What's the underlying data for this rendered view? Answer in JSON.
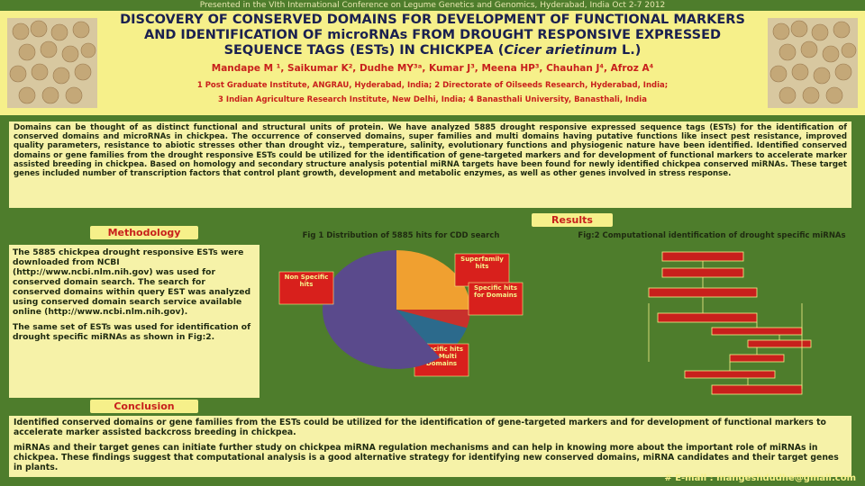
{
  "banner": "Presented in the VIth International Conference on Legume Genetics and Genomics, Hyderabad, India Oct 2-7 2012",
  "header": {
    "title": "DISCOVERY OF CONSERVED DOMAINS FOR DEVELOPMENT OF FUNCTIONAL MARKERS AND IDENTIFICATION OF microRNAs FROM DROUGHT RESPONSIVE EXPRESSED SEQUENCE TAGS (ESTs) IN CHICKPEA (",
    "title_species": "Cicer arietinum",
    "title_end": " L.)",
    "authors": "Mandape M ¹, Saikumar K², Dudhe MY³ᵃ, Kumar J³, Meena HP³, Chauhan J⁴, Afroz A⁴",
    "affiliations_1": "1 Post Graduate Institute, ANGRAU, Hyderabad, India; 2 Directorate of Oilseeds Research, Hyderabad, India;",
    "affiliations_2": "3 Indian Agriculture Research Institute, New Delhi, India; 4 Banasthali University, Banasthali, India"
  },
  "abstract": "Domains can be thought of as distinct functional and structural units of protein. We have analyzed 5885 drought responsive expressed sequence tags (ESTs) for the identification of conserved domains and microRNAs in chickpea. The occurrence of conserved domains, super families and multi domains having putative functions like insect pest resistance, improved quality parameters, resistance to abiotic stresses other than drought viz., temperature, salinity, evolutionary functions and physiogenic nature have been identified. Identified conserved domains or gene families from the drought responsive ESTs could be utilized for the identification of gene-targeted markers and for development of functional markers to accelerate marker assisted breeding in chickpea. Based on homology and secondary structure analysis potential miRNA targets have been found for newly identified chickpea conserved miRNAs. These target genes included number of transcription factors that control plant growth, development and metabolic enzymes, as well as other genes involved in stress response.",
  "methodology": {
    "heading": "Methodology",
    "para_1": "The 5885 chickpea drought responsive ESTs were downloaded from NCBI (http://www.ncbi.nlm.nih.gov) was used for conserved domain search. The search for conserved domains within query EST was analyzed using conserved domain search service available online (http://www.ncbi.nlm.nih.gov).",
    "para_2": "The same set of ESTs was used for identification of drought specific miRNAs as shown in Fig:2."
  },
  "results": {
    "heading": "Results",
    "fig1": {
      "title": "Fig 1 Distribution of 5885 hits for CDD search",
      "slices": [
        {
          "label": "Superfamily hits",
          "value": 25,
          "color": "#f0a030"
        },
        {
          "label": "Specific hits for Domains",
          "value": 5,
          "color": "#c8302c"
        },
        {
          "label": "Specific hits for Multi Domains",
          "value": 10,
          "color": "#2c6a8c"
        },
        {
          "label": "Non Specific hits",
          "value": 60,
          "color": "#5a4a8c"
        }
      ]
    },
    "fig2": {
      "title": "Fig:2 Computational identification of drought specific miRNAs"
    }
  },
  "conclusion": {
    "heading": "Conclusion",
    "para_1": "Identified conserved domains or gene families from the ESTs could be utilized for the identification of gene-targeted markers and for development of functional markers to accelerate marker assisted backcross breeding in chickpea.",
    "para_2": "miRNAs and their target genes can initiate further study on chickpea miRNA regulation mechanisms and can help in knowing more about the important role of miRNAs in chickpea. These findings suggest that computational analysis is a good alternative strategy for identifying new conserved domains, miRNA candidates and their target genes in plants."
  },
  "footer": "# E-mail : mangeshdudhe@gmail.com"
}
